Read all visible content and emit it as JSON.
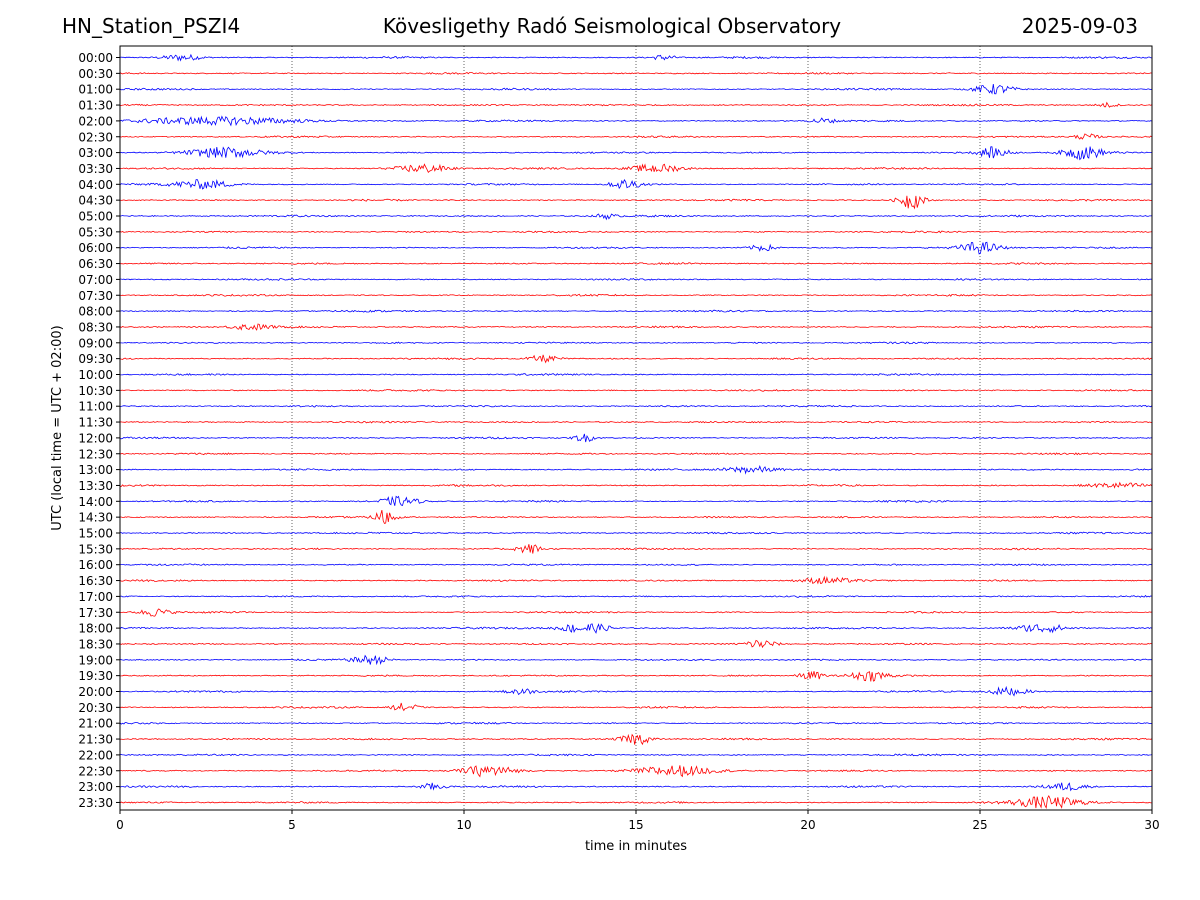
{
  "header": {
    "station": "HN_Station_PSZI4",
    "observatory": "Kövesligethy Radó Seismological Observatory",
    "date": "2025-09-03"
  },
  "chart_data": {
    "type": "line",
    "xlabel": "time in minutes",
    "ylabel": "UTC (local time = UTC + 02:00)",
    "xlim": [
      0,
      30
    ],
    "x_ticks": [
      0,
      5,
      10,
      15,
      20,
      25,
      30
    ],
    "grid": "vertical dotted at 5-minute ticks",
    "row_labels": [
      "00:00",
      "00:30",
      "01:00",
      "01:30",
      "02:00",
      "02:30",
      "03:00",
      "03:30",
      "04:00",
      "04:30",
      "05:00",
      "05:30",
      "06:00",
      "06:30",
      "07:00",
      "07:30",
      "08:00",
      "08:30",
      "09:00",
      "09:30",
      "10:00",
      "10:30",
      "11:00",
      "11:30",
      "12:00",
      "12:30",
      "13:00",
      "13:30",
      "14:00",
      "14:30",
      "15:00",
      "15:30",
      "16:00",
      "16:30",
      "17:00",
      "17:30",
      "18:00",
      "18:30",
      "19:00",
      "19:30",
      "20:00",
      "20:30",
      "21:00",
      "21:30",
      "22:00",
      "22:30",
      "23:00",
      "23:30"
    ],
    "trace_colors": [
      "#0000ff",
      "#ff0000"
    ],
    "events": [
      {
        "row": 0,
        "minute": 1.8,
        "amp": 0.35,
        "dur": 0.8
      },
      {
        "row": 0,
        "minute": 15.8,
        "amp": 0.3,
        "dur": 0.5
      },
      {
        "row": 2,
        "minute": 25.4,
        "amp": 0.55,
        "dur": 0.8
      },
      {
        "row": 3,
        "minute": 28.7,
        "amp": 0.25,
        "dur": 0.4
      },
      {
        "row": 4,
        "minute": 3.0,
        "amp": 0.45,
        "dur": 3.0
      },
      {
        "row": 4,
        "minute": 20.4,
        "amp": 0.3,
        "dur": 0.5
      },
      {
        "row": 5,
        "minute": 28.1,
        "amp": 0.3,
        "dur": 0.5
      },
      {
        "row": 6,
        "minute": 3.0,
        "amp": 0.55,
        "dur": 1.5
      },
      {
        "row": 6,
        "minute": 25.4,
        "amp": 0.6,
        "dur": 0.6
      },
      {
        "row": 6,
        "minute": 28.0,
        "amp": 0.75,
        "dur": 0.8
      },
      {
        "row": 7,
        "minute": 8.8,
        "amp": 0.5,
        "dur": 1.0
      },
      {
        "row": 7,
        "minute": 15.6,
        "amp": 0.5,
        "dur": 1.0
      },
      {
        "row": 8,
        "minute": 2.4,
        "amp": 0.5,
        "dur": 1.2
      },
      {
        "row": 8,
        "minute": 14.7,
        "amp": 0.55,
        "dur": 0.6
      },
      {
        "row": 9,
        "minute": 23.0,
        "amp": 1.0,
        "dur": 0.5
      },
      {
        "row": 10,
        "minute": 14.1,
        "amp": 0.3,
        "dur": 0.4
      },
      {
        "row": 12,
        "minute": 18.7,
        "amp": 0.35,
        "dur": 0.5
      },
      {
        "row": 12,
        "minute": 25.0,
        "amp": 0.65,
        "dur": 0.8
      },
      {
        "row": 17,
        "minute": 3.8,
        "amp": 0.35,
        "dur": 0.8
      },
      {
        "row": 19,
        "minute": 12.3,
        "amp": 0.4,
        "dur": 0.6
      },
      {
        "row": 24,
        "minute": 13.5,
        "amp": 0.45,
        "dur": 0.4
      },
      {
        "row": 26,
        "minute": 18.3,
        "amp": 0.4,
        "dur": 1.0
      },
      {
        "row": 27,
        "minute": 29.0,
        "amp": 0.3,
        "dur": 1.2
      },
      {
        "row": 28,
        "minute": 8.1,
        "amp": 0.5,
        "dur": 0.8
      },
      {
        "row": 29,
        "minute": 7.7,
        "amp": 0.9,
        "dur": 0.4
      },
      {
        "row": 31,
        "minute": 11.9,
        "amp": 0.55,
        "dur": 0.5
      },
      {
        "row": 33,
        "minute": 20.5,
        "amp": 0.35,
        "dur": 1.0
      },
      {
        "row": 35,
        "minute": 1.0,
        "amp": 0.45,
        "dur": 0.6
      },
      {
        "row": 36,
        "minute": 13.5,
        "amp": 0.6,
        "dur": 1.0
      },
      {
        "row": 36,
        "minute": 26.8,
        "amp": 0.5,
        "dur": 1.0
      },
      {
        "row": 37,
        "minute": 18.6,
        "amp": 0.5,
        "dur": 0.6
      },
      {
        "row": 38,
        "minute": 7.3,
        "amp": 0.5,
        "dur": 0.7
      },
      {
        "row": 39,
        "minute": 20.1,
        "amp": 0.5,
        "dur": 0.5
      },
      {
        "row": 39,
        "minute": 21.8,
        "amp": 0.55,
        "dur": 0.8
      },
      {
        "row": 40,
        "minute": 11.6,
        "amp": 0.45,
        "dur": 0.5
      },
      {
        "row": 40,
        "minute": 25.8,
        "amp": 0.45,
        "dur": 0.8
      },
      {
        "row": 41,
        "minute": 8.3,
        "amp": 0.5,
        "dur": 0.5
      },
      {
        "row": 43,
        "minute": 15.0,
        "amp": 0.65,
        "dur": 0.6
      },
      {
        "row": 45,
        "minute": 10.7,
        "amp": 0.65,
        "dur": 1.0
      },
      {
        "row": 45,
        "minute": 16.1,
        "amp": 0.6,
        "dur": 1.5
      },
      {
        "row": 46,
        "minute": 9.1,
        "amp": 0.4,
        "dur": 0.5
      },
      {
        "row": 46,
        "minute": 27.5,
        "amp": 0.45,
        "dur": 0.8
      },
      {
        "row": 47,
        "minute": 27.0,
        "amp": 0.65,
        "dur": 1.4
      }
    ]
  }
}
